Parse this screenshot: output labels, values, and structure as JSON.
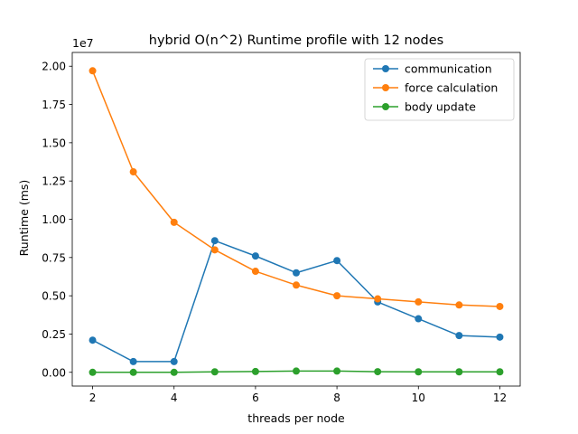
{
  "chart_data": {
    "type": "line",
    "title": "hybrid O(n^2) Runtime profile with 12 nodes",
    "xlabel": "threads per node",
    "ylabel": "Runtime (ms)",
    "y_offset_label": "1e7",
    "y_scale": 10000000,
    "x": [
      2,
      3,
      4,
      5,
      6,
      7,
      8,
      9,
      10,
      11,
      12
    ],
    "xlim": [
      1.5,
      12.5
    ],
    "ylim": [
      -0.09,
      2.09
    ],
    "x_ticks": [
      2,
      4,
      6,
      8,
      10,
      12
    ],
    "x_tick_labels": [
      "2",
      "4",
      "6",
      "8",
      "10",
      "12"
    ],
    "y_ticks": [
      0.0,
      0.25,
      0.5,
      0.75,
      1.0,
      1.25,
      1.5,
      1.75,
      2.0
    ],
    "y_tick_labels": [
      "0.00",
      "0.25",
      "0.50",
      "0.75",
      "1.00",
      "1.25",
      "1.50",
      "1.75",
      "2.00"
    ],
    "grid": false,
    "legend_position": "top-right",
    "series": [
      {
        "name": "communication",
        "color": "#1f77b4",
        "values": [
          0.21,
          0.07,
          0.07,
          0.86,
          0.76,
          0.65,
          0.73,
          0.46,
          0.35,
          0.24,
          0.23
        ]
      },
      {
        "name": "force calculation",
        "color": "#ff7f0e",
        "values": [
          1.97,
          1.31,
          0.98,
          0.8,
          0.66,
          0.57,
          0.5,
          0.48,
          0.46,
          0.44,
          0.43
        ]
      },
      {
        "name": "body update",
        "color": "#2ca02c",
        "values": [
          0.0,
          0.0,
          0.0,
          0.003,
          0.005,
          0.008,
          0.008,
          0.004,
          0.003,
          0.003,
          0.003
        ]
      }
    ]
  }
}
